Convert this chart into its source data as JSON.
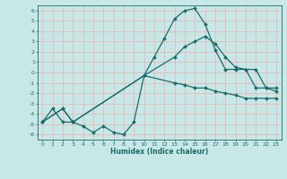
{
  "xlabel": "Humidex (Indice chaleur)",
  "bg_color": "#c8e8e8",
  "grid_color": "#e8b8b8",
  "line_color": "#1a6b6b",
  "xlim": [
    -0.5,
    23.5
  ],
  "ylim": [
    -6.5,
    6.5
  ],
  "xticks": [
    0,
    1,
    2,
    3,
    4,
    5,
    6,
    7,
    8,
    9,
    10,
    11,
    12,
    13,
    14,
    15,
    16,
    17,
    18,
    19,
    20,
    21,
    22,
    23
  ],
  "yticks": [
    -6,
    -5,
    -4,
    -3,
    -2,
    -1,
    0,
    1,
    2,
    3,
    4,
    5,
    6
  ],
  "line1_x": [
    0,
    1,
    2,
    3,
    4,
    5,
    6,
    7,
    8,
    9,
    10,
    11,
    12,
    13,
    14,
    15,
    16,
    17,
    18,
    19,
    20,
    21,
    22,
    23
  ],
  "line1_y": [
    -4.8,
    -3.5,
    -4.8,
    -4.8,
    -5.2,
    -5.8,
    -5.2,
    -5.8,
    -6.0,
    -4.8,
    -0.3,
    1.5,
    3.3,
    5.2,
    6.0,
    6.2,
    4.7,
    2.2,
    0.3,
    0.3,
    0.3,
    -1.5,
    -1.5,
    -1.8
  ],
  "line2_x": [
    0,
    2,
    3,
    10,
    13,
    14,
    15,
    16,
    17,
    18,
    19,
    20,
    21,
    22,
    23
  ],
  "line2_y": [
    -4.8,
    -3.5,
    -4.8,
    -0.3,
    1.5,
    2.5,
    3.0,
    3.5,
    2.8,
    1.5,
    0.5,
    0.3,
    0.3,
    -1.5,
    -1.5
  ],
  "line3_x": [
    0,
    2,
    3,
    10,
    13,
    14,
    15,
    16,
    17,
    18,
    19,
    20,
    21,
    22,
    23
  ],
  "line3_y": [
    -4.8,
    -3.5,
    -4.8,
    -0.3,
    -1.0,
    -1.2,
    -1.5,
    -1.5,
    -1.8,
    -2.0,
    -2.2,
    -2.5,
    -2.5,
    -2.5,
    -2.5
  ]
}
